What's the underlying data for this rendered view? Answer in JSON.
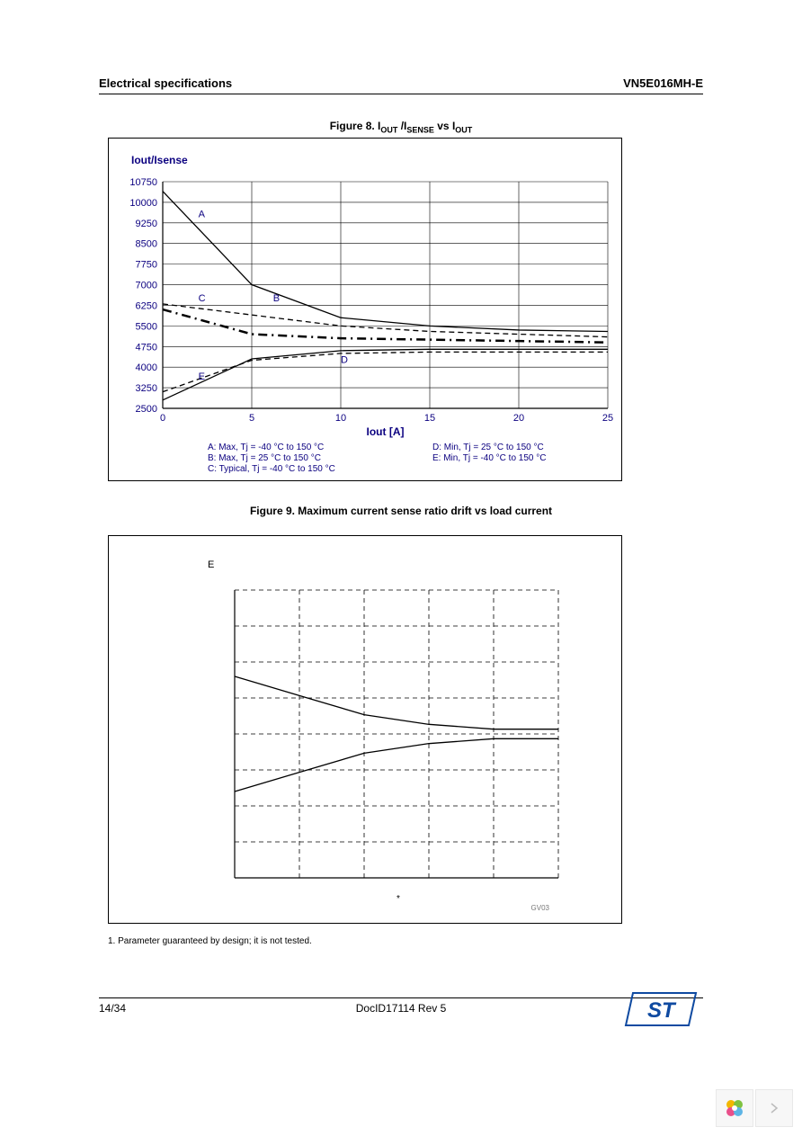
{
  "header": {
    "left": "Electrical specifications",
    "right": "VN5E016MH-E"
  },
  "figure8": {
    "caption_prefix": "Figure 8. I",
    "caption_sub1": "OUT",
    "caption_mid": " /I",
    "caption_sub2": "SENSE",
    "caption_vs": " vs I",
    "caption_sub3": "OUT",
    "type": "line",
    "ylabel": "Iout/Isense",
    "xlabel": "Iout [A]",
    "xlim": [
      0,
      25
    ],
    "xtick_step": 5,
    "ylim": [
      2500,
      10750
    ],
    "ytick_step": 750,
    "grid_color": "#000000",
    "axis_color": "#0b0080",
    "text_color": "#0b0080",
    "background_color": "#ffffff",
    "series": [
      {
        "id": "A",
        "label": "A: Max, Tj = -40 °C to 150 °C",
        "style": "solid",
        "color": "#000000",
        "points": [
          [
            0,
            10400
          ],
          [
            5,
            7000
          ],
          [
            10,
            5800
          ],
          [
            15,
            5500
          ],
          [
            20,
            5350
          ],
          [
            25,
            5300
          ]
        ]
      },
      {
        "id": "B",
        "label": "B: Max, Tj = 25 °C to 150 °C",
        "style": "short-dash",
        "color": "#000000",
        "points": [
          [
            0,
            6300
          ],
          [
            5,
            5900
          ],
          [
            10,
            5500
          ],
          [
            15,
            5300
          ],
          [
            20,
            5200
          ],
          [
            25,
            5100
          ]
        ]
      },
      {
        "id": "C",
        "label": "C: Typical, Tj = -40 °C to 150 °C",
        "style": "dash-dot",
        "color": "#000000",
        "width": 2.5,
        "points": [
          [
            0,
            6100
          ],
          [
            5,
            5200
          ],
          [
            10,
            5050
          ],
          [
            15,
            5000
          ],
          [
            20,
            4950
          ],
          [
            25,
            4900
          ]
        ]
      },
      {
        "id": "D",
        "label": "D: Min, Tj = 25 °C to 150 °C",
        "style": "short-dash",
        "color": "#000000",
        "points": [
          [
            0,
            3100
          ],
          [
            5,
            4250
          ],
          [
            10,
            4500
          ],
          [
            15,
            4550
          ],
          [
            20,
            4550
          ],
          [
            25,
            4550
          ]
        ]
      },
      {
        "id": "E",
        "label": "E: Min, Tj = -40 °C to 150 °C",
        "style": "solid",
        "color": "#000000",
        "points": [
          [
            0,
            2800
          ],
          [
            5,
            4300
          ],
          [
            10,
            4600
          ],
          [
            15,
            4650
          ],
          [
            20,
            4650
          ],
          [
            25,
            4650
          ]
        ]
      }
    ],
    "curve_labels": [
      {
        "text": "A",
        "x": 2,
        "y": 9450
      },
      {
        "text": "B",
        "x": 6.2,
        "y": 6400
      },
      {
        "text": "C",
        "x": 2,
        "y": 6400
      },
      {
        "text": "D",
        "x": 10,
        "y": 4150
      },
      {
        "text": "E",
        "x": 2,
        "y": 3550
      }
    ],
    "legend_left": [
      "A: Max, Tj = -40 °C to 150 °C",
      "B: Max, Tj = 25 °C to 150 °C",
      "C: Typical, Tj = -40 °C to 150 °C"
    ],
    "legend_right": [
      "D: Min, Tj = 25 °C to 150 °C",
      "E: Min, Tj = -40 °C to 150 °C"
    ]
  },
  "figure9": {
    "caption": "Figure 9. Maximum current sense ratio drift vs load current",
    "type": "line",
    "ylabel_symbol": "E",
    "xlabel_symbol": "*",
    "background_color": "#ffffff",
    "grid_style": "dashed",
    "grid_color": "#000000",
    "xlim": [
      0,
      25
    ],
    "x_panels": 5,
    "ylim": [
      -30,
      30
    ],
    "y_panels": 8,
    "series": [
      {
        "id": "upper",
        "style": "solid",
        "color": "#000000",
        "points": [
          [
            0,
            12
          ],
          [
            5,
            8
          ],
          [
            10,
            4
          ],
          [
            15,
            2
          ],
          [
            20,
            1
          ],
          [
            25,
            1
          ]
        ]
      },
      {
        "id": "lower",
        "style": "solid",
        "color": "#000000",
        "points": [
          [
            0,
            -12
          ],
          [
            5,
            -8
          ],
          [
            10,
            -4
          ],
          [
            15,
            -2
          ],
          [
            20,
            -1
          ],
          [
            25,
            -1
          ]
        ]
      }
    ],
    "footer_mark": "GV03"
  },
  "footnote": "1.    Parameter guaranteed by design; it is not tested.",
  "page_footer": {
    "left": "14/34",
    "center": "DocID17114 Rev 5"
  },
  "logo_colors": {
    "blue": "#0f4aa1",
    "accent": "#3cc1e0"
  },
  "nav_widget_colors": [
    "#f2b700",
    "#7fc241",
    "#e94f8a",
    "#5db4e5"
  ]
}
